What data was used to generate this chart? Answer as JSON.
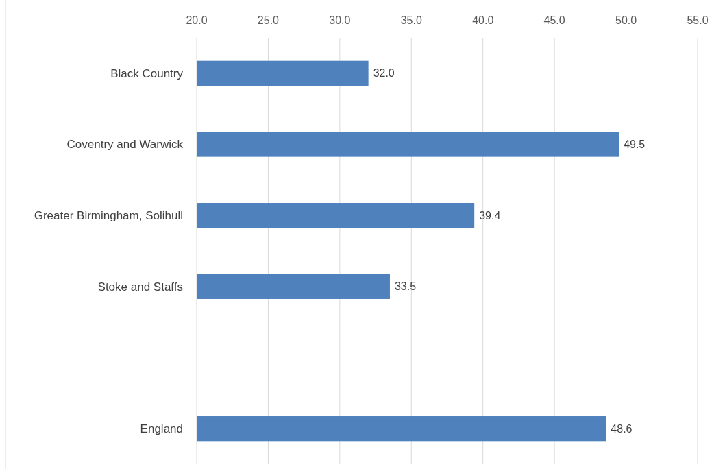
{
  "chart_data": {
    "type": "bar",
    "orientation": "horizontal",
    "categories": [
      "Black Country",
      "Coventry and Warwick",
      "Greater Birmingham, Solihull",
      "Stoke and Staffs",
      null,
      "England"
    ],
    "values": [
      32.0,
      49.5,
      39.4,
      33.5,
      null,
      48.6
    ],
    "value_labels": [
      "32.0",
      "49.5",
      "39.4",
      "33.5",
      null,
      "48.6"
    ],
    "color": "#4f81bd",
    "xlim": [
      20,
      55
    ],
    "xticks": [
      {
        "value": 20,
        "label": "20.0"
      },
      {
        "value": 25,
        "label": "25.0"
      },
      {
        "value": 30,
        "label": "30.0"
      },
      {
        "value": 35,
        "label": "35.0"
      },
      {
        "value": 40,
        "label": "40.0"
      },
      {
        "value": 45,
        "label": "45.0"
      },
      {
        "value": 50,
        "label": "50.0"
      },
      {
        "value": 55,
        "label": "55.0"
      }
    ],
    "grid": "x"
  }
}
